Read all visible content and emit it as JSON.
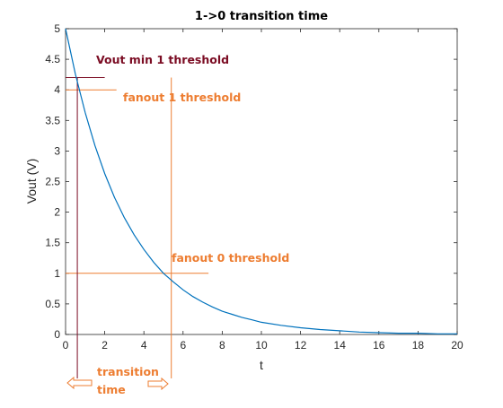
{
  "chart_data": {
    "type": "line",
    "title": "1->0 transition time",
    "xlabel": "t",
    "ylabel": "Vout (V)",
    "xlim": [
      0,
      20
    ],
    "ylim": [
      0,
      5
    ],
    "x_ticks": [
      0,
      2,
      4,
      6,
      8,
      10,
      12,
      14,
      16,
      18,
      20
    ],
    "y_ticks": [
      0,
      0.5,
      1,
      1.5,
      2,
      2.5,
      3,
      3.5,
      4,
      4.5,
      5
    ],
    "x_tick_labels": [
      "0",
      "2",
      "4",
      "6",
      "8",
      "10",
      "12",
      "14",
      "16",
      "18",
      "20"
    ],
    "y_tick_labels": [
      "0",
      "0.5",
      "1",
      "1.5",
      "2",
      "2.5",
      "3",
      "3.5",
      "4",
      "4.5",
      "5"
    ],
    "grid": false,
    "series": [
      {
        "color": "#0072bd",
        "x": [
          0,
          0.5,
          1,
          1.5,
          2,
          2.5,
          3,
          3.5,
          4,
          4.5,
          5,
          5.5,
          6,
          6.5,
          7,
          7.5,
          8,
          8.5,
          9,
          9.5,
          10,
          11,
          12,
          13,
          14,
          15,
          16,
          17,
          18,
          19,
          20
        ],
        "values": [
          5.0,
          4.26,
          3.63,
          3.09,
          2.63,
          2.24,
          1.91,
          1.63,
          1.39,
          1.18,
          1.0,
          0.86,
          0.73,
          0.62,
          0.53,
          0.45,
          0.38,
          0.33,
          0.28,
          0.24,
          0.2,
          0.15,
          0.11,
          0.08,
          0.06,
          0.04,
          0.03,
          0.02,
          0.02,
          0.01,
          0.01
        ]
      }
    ],
    "threshold_lines": [
      {
        "label": "Vout min 1 threshold",
        "y": 4.2,
        "x_end": 2.0,
        "color": "#7b0c23"
      },
      {
        "label": "fanout 1 threshold",
        "y": 4.0,
        "x_end": 2.6,
        "color": "#ed7d31"
      },
      {
        "label": "fanout 0 threshold",
        "y": 1.0,
        "x_end": 7.3,
        "color": "#ed7d31"
      }
    ],
    "vertical_markers": [
      {
        "x": 0.6,
        "color": "#7b0c23"
      },
      {
        "x": 5.4,
        "color": "#ed7d31"
      }
    ],
    "annotation": {
      "line1": "transition",
      "line2": "time",
      "color": "#ed7d31"
    }
  }
}
